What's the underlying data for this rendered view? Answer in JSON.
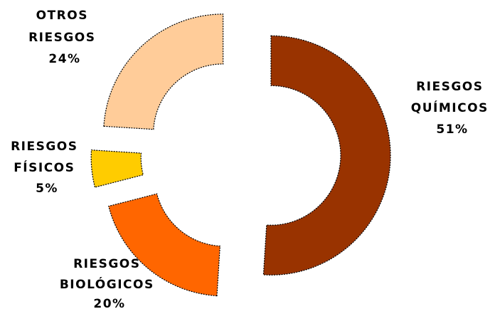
{
  "chart_data": {
    "type": "pie",
    "variant": "exploded-donut",
    "categories": [
      "RIESGOS QUÍMICOS",
      "RIESGOS BIOLÓGICOS",
      "RIESGOS FÍSICOS",
      "OTROS RIESGOS"
    ],
    "values": [
      51,
      20,
      5,
      24
    ],
    "colors": [
      "#993300",
      "#FF6600",
      "#FFCC00",
      "#FFCC99"
    ],
    "labels": [
      {
        "lines": [
          "RIESGOS",
          "QUÍMICOS",
          "51%"
        ]
      },
      {
        "lines": [
          "RIESGOS",
          "BIOLÓGICOS",
          "20%"
        ]
      },
      {
        "lines": [
          "RIESGOS",
          "FÍSICOS",
          "5%"
        ]
      },
      {
        "lines": [
          "OTROS",
          "RIESGOS",
          "24%"
        ]
      }
    ],
    "title": "",
    "legend": "none"
  }
}
